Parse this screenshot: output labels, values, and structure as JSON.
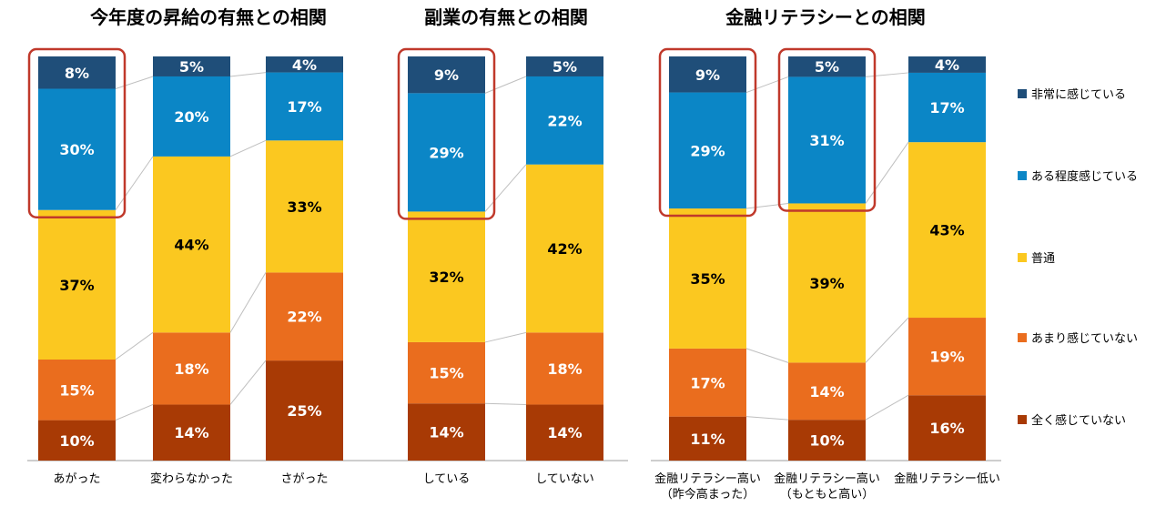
{
  "colors": {
    "very_much": "#1f4e79",
    "somewhat": "#0b86c6",
    "neutral": "#fbc820",
    "not_much": "#ea6d1e",
    "not_at_all": "#a83a05",
    "highlight": "#c0392b",
    "axis": "#9e9e9e",
    "connector": "#bfbfbf"
  },
  "legend": [
    {
      "key": "very_much",
      "label": "非常に感じている"
    },
    {
      "key": "somewhat",
      "label": "ある程度感じている"
    },
    {
      "key": "neutral",
      "label": "普通"
    },
    {
      "key": "not_much",
      "label": "あまり感じていない"
    },
    {
      "key": "not_at_all",
      "label": "全く感じていない"
    }
  ],
  "chart_data": [
    {
      "type": "bar",
      "stacked": true,
      "title": "今年度の昇給の有無との相関",
      "categories": [
        [
          "あがった"
        ],
        [
          "変わらなかった"
        ],
        [
          "さがった"
        ]
      ],
      "series": [
        {
          "key": "not_at_all",
          "name": "全く感じていない",
          "values": [
            10,
            14,
            25
          ]
        },
        {
          "key": "not_much",
          "name": "あまり感じていない",
          "values": [
            15,
            18,
            22
          ]
        },
        {
          "key": "neutral",
          "name": "普通",
          "values": [
            37,
            44,
            33
          ]
        },
        {
          "key": "somewhat",
          "name": "ある程度感じている",
          "values": [
            30,
            20,
            17
          ]
        },
        {
          "key": "very_much",
          "name": "非常に感じている",
          "values": [
            8,
            5,
            4
          ]
        }
      ],
      "highlighted_categories": [
        0
      ]
    },
    {
      "type": "bar",
      "stacked": true,
      "title": "副業の有無との相関",
      "categories": [
        [
          "している"
        ],
        [
          "していない"
        ]
      ],
      "series": [
        {
          "key": "not_at_all",
          "name": "全く感じていない",
          "values": [
            14,
            14
          ]
        },
        {
          "key": "not_much",
          "name": "あまり感じていない",
          "values": [
            15,
            18
          ]
        },
        {
          "key": "neutral",
          "name": "普通",
          "values": [
            32,
            42
          ]
        },
        {
          "key": "somewhat",
          "name": "ある程度感じている",
          "values": [
            29,
            22
          ]
        },
        {
          "key": "very_much",
          "name": "非常に感じている",
          "values": [
            9,
            5
          ]
        }
      ],
      "highlighted_categories": [
        0
      ]
    },
    {
      "type": "bar",
      "stacked": true,
      "title": "金融リテラシーとの相関",
      "categories": [
        [
          "金融リテラシー高い",
          "（昨今高まった）"
        ],
        [
          "金融リテラシー高い",
          "（もともと高い）"
        ],
        [
          "金融リテラシー低い"
        ]
      ],
      "series": [
        {
          "key": "not_at_all",
          "name": "全く感じていない",
          "values": [
            11,
            10,
            16
          ]
        },
        {
          "key": "not_much",
          "name": "あまり感じていない",
          "values": [
            17,
            14,
            19
          ]
        },
        {
          "key": "neutral",
          "name": "普通",
          "values": [
            35,
            39,
            43
          ]
        },
        {
          "key": "somewhat",
          "name": "ある程度感じている",
          "values": [
            29,
            31,
            17
          ]
        },
        {
          "key": "very_much",
          "name": "非常に感じている",
          "values": [
            9,
            5,
            4
          ]
        }
      ],
      "highlighted_categories": [
        0,
        1
      ]
    }
  ]
}
